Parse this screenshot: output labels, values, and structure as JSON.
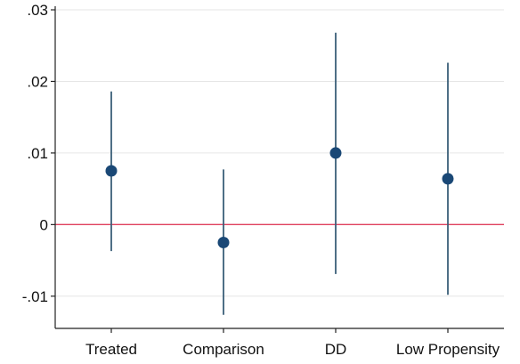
{
  "chart_data": {
    "type": "scatter",
    "subtype": "coefficient-plot",
    "title": "",
    "xlabel": "",
    "ylabel": "",
    "categories": [
      "Treated",
      "Comparison",
      "DD",
      "Low Propensity"
    ],
    "estimates": [
      0.0075,
      -0.0025,
      0.01,
      0.0064
    ],
    "ci_lower": [
      -0.0037,
      -0.0126,
      -0.0069,
      -0.0098
    ],
    "ci_upper": [
      0.0186,
      0.0077,
      0.0268,
      0.0226
    ],
    "ylim": [
      -0.0145,
      0.0305
    ],
    "yticks": [
      -0.01,
      0,
      0.01,
      0.02,
      0.03
    ],
    "ytick_labels": [
      "-.01",
      "0",
      ".01",
      ".02",
      ".03"
    ],
    "reference_line": 0,
    "grid": true,
    "colors": {
      "marker": "#1a4876",
      "ci": "#3b5f78",
      "reference": "#e0405e",
      "grid": "#e6e6e6",
      "axis": "#222222"
    }
  }
}
